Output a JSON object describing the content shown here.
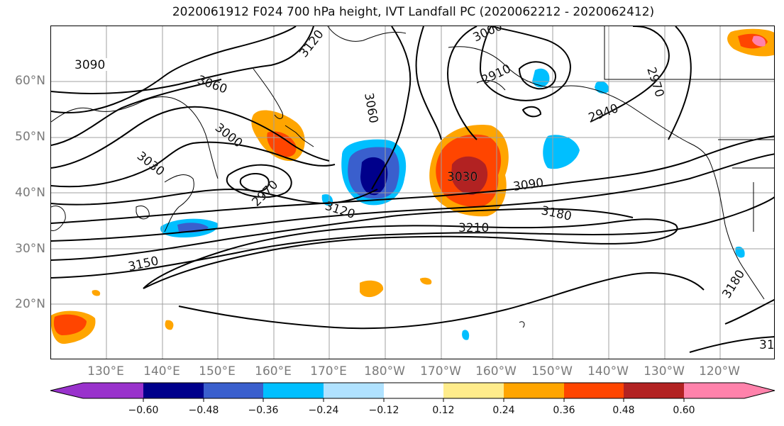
{
  "figure": {
    "title": "2020061912 F024 700 hPa height, IVT Landfall PC (2020062212 - 2020062412)"
  },
  "map": {
    "lat_labels": [
      "60°N",
      "50°N",
      "40°N",
      "30°N",
      "20°N"
    ],
    "lon_labels": [
      "130°E",
      "140°E",
      "150°E",
      "160°E",
      "170°E",
      "180°W",
      "170°W",
      "160°W",
      "150°W",
      "140°W",
      "130°W",
      "120°W"
    ],
    "contour_labels": [
      "3090",
      "3120",
      "3060",
      "3000",
      "3030",
      "2970",
      "3060",
      "3000",
      "2910",
      "2970",
      "2940",
      "3030",
      "3090",
      "3120",
      "3180",
      "3210",
      "3150",
      "3180",
      "31"
    ],
    "gridlines": true,
    "coastlines": true
  },
  "colorbar": {
    "ticks": [
      "−0.60",
      "−0.48",
      "−0.36",
      "−0.24",
      "−0.12",
      "0.12",
      "0.24",
      "0.36",
      "0.48",
      "0.60"
    ],
    "colors": [
      "#9932cc",
      "#00008b",
      "#3a5fcd",
      "#00bfff",
      "#b0e2ff",
      "#ffffff",
      "#ffec8b",
      "#ffa500",
      "#ff4500",
      "#b22222",
      "#ff82ab"
    ]
  }
}
